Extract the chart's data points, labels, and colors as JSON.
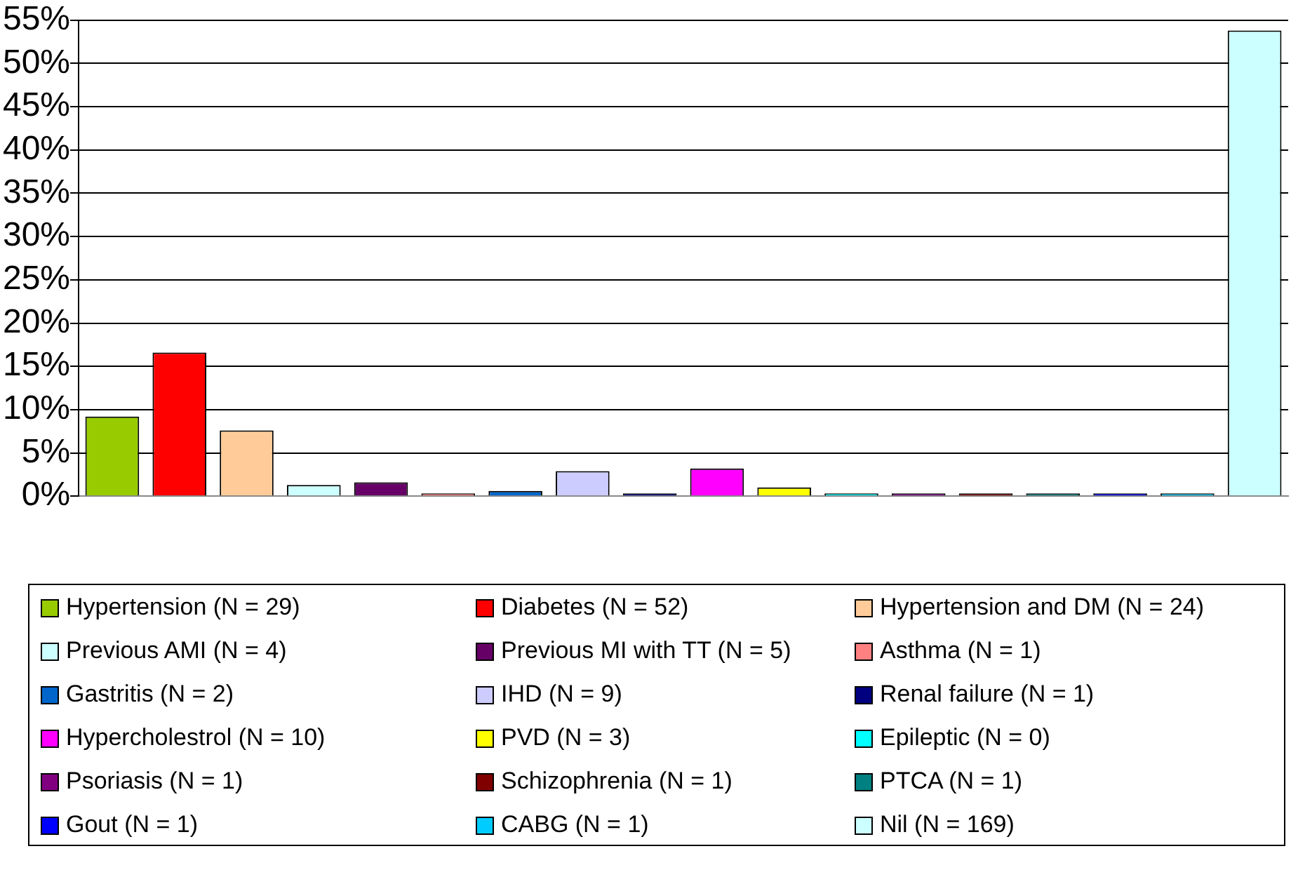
{
  "chart_data": {
    "type": "bar",
    "categories": [
      null
    ],
    "series": [
      {
        "name": "Hypertension (N = 29)",
        "color": "#99cc00",
        "values": [
          9.2
        ]
      },
      {
        "name": "Diabetes (N = 52)",
        "color": "#ff0000",
        "values": [
          16.6
        ]
      },
      {
        "name": "Hypertension and DM (N = 24)",
        "color": "#ffcc99",
        "values": [
          7.6
        ]
      },
      {
        "name": "Previous AMI (N = 4)",
        "color": "#ccffff",
        "values": [
          1.3
        ]
      },
      {
        "name": "Previous MI with TT (N = 5)",
        "color": "#660066",
        "values": [
          1.6
        ]
      },
      {
        "name": "Asthma (N = 1)",
        "color": "#ff8080",
        "values": [
          0.3
        ]
      },
      {
        "name": "Gastritis (N = 2)",
        "color": "#0066cc",
        "values": [
          0.6
        ]
      },
      {
        "name": "IHD (N = 9)",
        "color": "#ccccff",
        "values": [
          2.9
        ]
      },
      {
        "name": "Renal failure (N = 1)",
        "color": "#000080",
        "values": [
          0.3
        ]
      },
      {
        "name": "Hypercholestrol (N = 10)",
        "color": "#ff00ff",
        "values": [
          3.2
        ]
      },
      {
        "name": "PVD (N = 3)",
        "color": "#ffff00",
        "values": [
          1.0
        ]
      },
      {
        "name": "Epileptic (N = 0)",
        "color": "#00ffff",
        "values": [
          0
        ]
      },
      {
        "name": "Psoriasis (N = 1)",
        "color": "#800080",
        "values": [
          0.3
        ]
      },
      {
        "name": "Schizophrenia (N = 1)",
        "color": "#800000",
        "values": [
          0.3
        ]
      },
      {
        "name": "PTCA (N = 1)",
        "color": "#008080",
        "values": [
          0.3
        ]
      },
      {
        "name": "Gout (N = 1)",
        "color": "#0000ff",
        "values": [
          0.3
        ]
      },
      {
        "name": "CABG (N = 1)",
        "color": "#00ccff",
        "values": [
          0.3
        ]
      },
      {
        "name": "Nil (N = 169)",
        "color": "#ccffff",
        "values": [
          53.8
        ]
      }
    ],
    "ylim": [
      0,
      55
    ],
    "yticks": [
      {
        "value": 0,
        "label": "0%"
      },
      {
        "value": 5,
        "label": "5%"
      },
      {
        "value": 10,
        "label": "10%"
      },
      {
        "value": 15,
        "label": "15%"
      },
      {
        "value": 20,
        "label": "20%"
      },
      {
        "value": 25,
        "label": "25%"
      },
      {
        "value": 30,
        "label": "30%"
      },
      {
        "value": 35,
        "label": "35%"
      },
      {
        "value": 40,
        "label": "40%"
      },
      {
        "value": 45,
        "label": "45%"
      },
      {
        "value": 50,
        "label": "50%"
      },
      {
        "value": 55,
        "label": "55%"
      }
    ],
    "grid": "y",
    "legend": "bottom"
  }
}
